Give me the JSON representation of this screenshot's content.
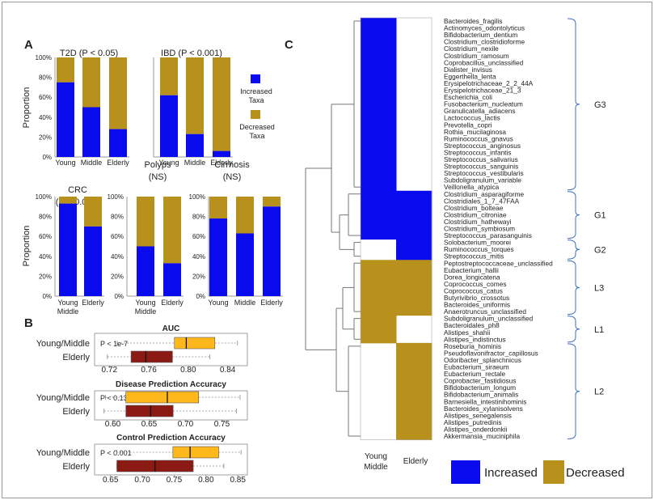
{
  "colors": {
    "increased": "#0a0aef",
    "decreased": "#b8901c",
    "box_young": "#ffb81c",
    "box_elderly": "#8b1a14",
    "dendro": "#777777",
    "bracket": "#3a6fc0"
  },
  "panel_labels": {
    "a": "A",
    "b": "B",
    "c": "C"
  },
  "panel_a": {
    "ylabel": "Proportion",
    "legend": {
      "increased": "Increased\nTaxa",
      "decreased": "Decreased\nTaxa"
    },
    "chart_data": [
      {
        "type": "bar",
        "stacked": true,
        "title": "T2D (P < 0.05)",
        "categories": [
          "Young",
          "Middle",
          "Elderly"
        ],
        "yticks": [
          "0%",
          "20%",
          "40%",
          "60%",
          "80%",
          "100%"
        ],
        "series": [
          {
            "name": "Increased Taxa",
            "values": [
              0.75,
              0.5,
              0.28
            ]
          },
          {
            "name": "Decreased Taxa",
            "values": [
              0.25,
              0.5,
              0.72
            ]
          }
        ]
      },
      {
        "type": "bar",
        "stacked": true,
        "title": "IBD (P < 0.001)",
        "categories": [
          "Young",
          "Middle",
          "Elderly"
        ],
        "yticks": [
          "0%",
          "20%",
          "40%",
          "60%",
          "80%",
          "100%"
        ],
        "series": [
          {
            "name": "Increased Taxa",
            "values": [
              0.62,
              0.23,
              0.06
            ]
          },
          {
            "name": "Decreased Taxa",
            "values": [
              0.38,
              0.77,
              0.94
            ]
          }
        ]
      },
      {
        "type": "bar",
        "stacked": true,
        "title": "CRC\n(P < 0.001)",
        "categories": [
          "Young\nMiddle",
          "Elderly"
        ],
        "yticks": [
          "0%",
          "20%",
          "40%",
          "60%",
          "80%",
          "100%"
        ],
        "series": [
          {
            "name": "Increased Taxa",
            "values": [
              0.93,
              0.7
            ]
          },
          {
            "name": "Decreased Taxa",
            "values": [
              0.07,
              0.3
            ]
          }
        ]
      },
      {
        "type": "bar",
        "stacked": true,
        "title": "Polyps\n(NS)",
        "categories": [
          "Young\nMiddle",
          "Elderly"
        ],
        "yticks": [
          "0%",
          "20%",
          "40%",
          "60%",
          "80%",
          "100%"
        ],
        "series": [
          {
            "name": "Increased Taxa",
            "values": [
              0.5,
              0.33
            ]
          },
          {
            "name": "Decreased Taxa",
            "values": [
              0.5,
              0.67
            ]
          }
        ]
      },
      {
        "type": "bar",
        "stacked": true,
        "title": "Cirrhosis\n(NS)",
        "categories": [
          "Young",
          "Middle",
          "Elderly"
        ],
        "yticks": [
          "0%",
          "20%",
          "40%",
          "60%",
          "80%",
          "100%"
        ],
        "series": [
          {
            "name": "Increased Taxa",
            "values": [
              0.78,
              0.63,
              0.9
            ]
          },
          {
            "name": "Decreased Taxa",
            "values": [
              0.22,
              0.37,
              0.1
            ]
          }
        ]
      }
    ]
  },
  "panel_b": {
    "chart_data": [
      {
        "type": "box",
        "title": "AUC",
        "pvalue": "P < 1e-7",
        "xlim": [
          0.705,
          0.86
        ],
        "xticks": [
          0.72,
          0.76,
          0.8,
          0.84
        ],
        "xticklabels": [
          "0.72",
          "0.76",
          "0.80",
          "0.84"
        ],
        "boxes": [
          {
            "name": "Young/Middle",
            "min": 0.728,
            "q1": 0.786,
            "median": 0.798,
            "q3": 0.827,
            "max": 0.85
          },
          {
            "name": "Elderly",
            "min": 0.718,
            "q1": 0.742,
            "median": 0.757,
            "q3": 0.784,
            "max": 0.822
          }
        ]
      },
      {
        "type": "box",
        "title": "Disease Prediction Accuracy",
        "pvalue": "P < 0.13",
        "xlim": [
          0.575,
          0.785
        ],
        "xticks": [
          0.6,
          0.65,
          0.7,
          0.75
        ],
        "xticklabels": [
          "0.60",
          "0.65",
          "0.70",
          "0.75"
        ],
        "boxes": [
          {
            "name": "Young/Middle",
            "min": 0.59,
            "q1": 0.618,
            "median": 0.675,
            "q3": 0.718,
            "max": 0.775
          },
          {
            "name": "Elderly",
            "min": 0.588,
            "q1": 0.618,
            "median": 0.652,
            "q3": 0.683,
            "max": 0.77
          }
        ]
      },
      {
        "type": "box",
        "title": "Control Prediction Accuracy",
        "pvalue": "P < 0.001",
        "xlim": [
          0.625,
          0.865
        ],
        "xticks": [
          0.65,
          0.7,
          0.75,
          0.8,
          0.85
        ],
        "xticklabels": [
          "0.65",
          "0.70",
          "0.75",
          "0.80",
          "0.85"
        ],
        "boxes": [
          {
            "name": "Young/Middle",
            "min": 0.66,
            "q1": 0.748,
            "median": 0.775,
            "q3": 0.82,
            "max": 0.855
          },
          {
            "name": "Elderly",
            "min": 0.66,
            "q1": 0.66,
            "median": 0.72,
            "q3": 0.78,
            "max": 0.828
          }
        ]
      }
    ]
  },
  "panel_c": {
    "chart_data": {
      "type": "heatmap",
      "columns": [
        "Young\nMiddle",
        "Elderly"
      ],
      "legend": {
        "increased": "Increased",
        "decreased": "Decreased"
      },
      "rows": [
        {
          "taxon": "Bacteroides_fragilis",
          "young_middle": "increased",
          "elderly": "none"
        },
        {
          "taxon": "Actinomyces_odontolyticus",
          "young_middle": "increased",
          "elderly": "none"
        },
        {
          "taxon": "Bifidobacterium_dentium",
          "young_middle": "increased",
          "elderly": "none"
        },
        {
          "taxon": "Clostridium_clostridioforme",
          "young_middle": "increased",
          "elderly": "none"
        },
        {
          "taxon": "Clostridium_nexile",
          "young_middle": "increased",
          "elderly": "none"
        },
        {
          "taxon": "Clostridium_ramosum",
          "young_middle": "increased",
          "elderly": "none"
        },
        {
          "taxon": "Coprobacillus_unclassified",
          "young_middle": "increased",
          "elderly": "none"
        },
        {
          "taxon": "Dialister_invisus",
          "young_middle": "increased",
          "elderly": "none"
        },
        {
          "taxon": "Eggerthella_lenta",
          "young_middle": "increased",
          "elderly": "none"
        },
        {
          "taxon": "Erysipelotrichaceae_2_2_44A",
          "young_middle": "increased",
          "elderly": "none"
        },
        {
          "taxon": "Erysipelotrichaceae_21_3",
          "young_middle": "increased",
          "elderly": "none"
        },
        {
          "taxon": "Escherichia_coli",
          "young_middle": "increased",
          "elderly": "none"
        },
        {
          "taxon": "Fusobacterium_nucleatum",
          "young_middle": "increased",
          "elderly": "none"
        },
        {
          "taxon": "Granulicatella_adiacens",
          "young_middle": "increased",
          "elderly": "none"
        },
        {
          "taxon": "Lactococcus_lactis",
          "young_middle": "increased",
          "elderly": "none"
        },
        {
          "taxon": "Prevotella_copri",
          "young_middle": "increased",
          "elderly": "none"
        },
        {
          "taxon": "Rothia_mucilaginosa",
          "young_middle": "increased",
          "elderly": "none"
        },
        {
          "taxon": "Ruminococcus_gnavus",
          "young_middle": "increased",
          "elderly": "none"
        },
        {
          "taxon": "Streptococcus_anginosus",
          "young_middle": "increased",
          "elderly": "none"
        },
        {
          "taxon": "Streptococcus_infantis",
          "young_middle": "increased",
          "elderly": "none"
        },
        {
          "taxon": "Streptococcus_salivarius",
          "young_middle": "increased",
          "elderly": "none"
        },
        {
          "taxon": "Streptococcus_sanguinis",
          "young_middle": "increased",
          "elderly": "none"
        },
        {
          "taxon": "Streptococcus_vestibularis",
          "young_middle": "increased",
          "elderly": "none"
        },
        {
          "taxon": "Subdoligranulum_variable",
          "young_middle": "increased",
          "elderly": "none"
        },
        {
          "taxon": "Veillonella_atypica",
          "young_middle": "increased",
          "elderly": "none"
        },
        {
          "taxon": "Clostridium_asparagiforme",
          "young_middle": "increased",
          "elderly": "increased"
        },
        {
          "taxon": "Clostridiales_1_7_47FAA",
          "young_middle": "increased",
          "elderly": "increased"
        },
        {
          "taxon": "Clostridium_bolteae",
          "young_middle": "increased",
          "elderly": "increased"
        },
        {
          "taxon": "Clostridium_citroniae",
          "young_middle": "increased",
          "elderly": "increased"
        },
        {
          "taxon": "Clostridium_hathewayi",
          "young_middle": "increased",
          "elderly": "increased"
        },
        {
          "taxon": "Clostridium_symbiosum",
          "young_middle": "increased",
          "elderly": "increased"
        },
        {
          "taxon": "Streptococcus_parasanguinis",
          "young_middle": "increased",
          "elderly": "increased"
        },
        {
          "taxon": "Solobacterium_moorei",
          "young_middle": "none",
          "elderly": "increased"
        },
        {
          "taxon": "Ruminococcus_torques",
          "young_middle": "none",
          "elderly": "increased"
        },
        {
          "taxon": "Streptococcus_mitis",
          "young_middle": "none",
          "elderly": "increased"
        },
        {
          "taxon": "Peptostreptococcaceae_unclassified",
          "young_middle": "decreased",
          "elderly": "decreased"
        },
        {
          "taxon": "Eubacterium_hallii",
          "young_middle": "decreased",
          "elderly": "decreased"
        },
        {
          "taxon": "Dorea_longicatena",
          "young_middle": "decreased",
          "elderly": "decreased"
        },
        {
          "taxon": "Coprococcus_comes",
          "young_middle": "decreased",
          "elderly": "decreased"
        },
        {
          "taxon": "Coprococcus_catus",
          "young_middle": "decreased",
          "elderly": "decreased"
        },
        {
          "taxon": "Butyrivibrio_crossotus",
          "young_middle": "decreased",
          "elderly": "decreased"
        },
        {
          "taxon": "Bacteroides_uniformis",
          "young_middle": "decreased",
          "elderly": "decreased"
        },
        {
          "taxon": "Anaerotruncus_unclassified",
          "young_middle": "decreased",
          "elderly": "decreased"
        },
        {
          "taxon": "Subdoligranulum_unclassified",
          "young_middle": "decreased",
          "elderly": "none"
        },
        {
          "taxon": "Bacteroidales_ph8",
          "young_middle": "decreased",
          "elderly": "none"
        },
        {
          "taxon": "Alistipes_shahii",
          "young_middle": "decreased",
          "elderly": "none"
        },
        {
          "taxon": "Alistipes_indistinctus",
          "young_middle": "decreased",
          "elderly": "none"
        },
        {
          "taxon": "Roseburia_hominis",
          "young_middle": "none",
          "elderly": "decreased"
        },
        {
          "taxon": "Pseudoflavonifractor_capillosus",
          "young_middle": "none",
          "elderly": "decreased"
        },
        {
          "taxon": "Odoribacter_splanchnicus",
          "young_middle": "none",
          "elderly": "decreased"
        },
        {
          "taxon": "Eubacterium_siraeum",
          "young_middle": "none",
          "elderly": "decreased"
        },
        {
          "taxon": "Eubacterium_rectale",
          "young_middle": "none",
          "elderly": "decreased"
        },
        {
          "taxon": "Coprobacter_fastidiosus",
          "young_middle": "none",
          "elderly": "decreased"
        },
        {
          "taxon": "Bifidobacterium_longum",
          "young_middle": "none",
          "elderly": "decreased"
        },
        {
          "taxon": "Bifidobacterium_animalis",
          "young_middle": "none",
          "elderly": "decreased"
        },
        {
          "taxon": "Barnesiella_intestinihominis",
          "young_middle": "none",
          "elderly": "decreased"
        },
        {
          "taxon": "Bacteroides_xylanisolvens",
          "young_middle": "none",
          "elderly": "decreased"
        },
        {
          "taxon": "Alistipes_senegalensis",
          "young_middle": "none",
          "elderly": "decreased"
        },
        {
          "taxon": "Alistipes_putredinis",
          "young_middle": "none",
          "elderly": "decreased"
        },
        {
          "taxon": "Alistipes_onderdonkii",
          "young_middle": "none",
          "elderly": "decreased"
        },
        {
          "taxon": "Akkermansia_muciniphila",
          "young_middle": "none",
          "elderly": "decreased"
        }
      ],
      "groups": [
        {
          "label": "G3",
          "first": 0,
          "last": 24
        },
        {
          "label": "G1",
          "first": 25,
          "last": 31
        },
        {
          "label": "G2",
          "first": 32,
          "last": 34
        },
        {
          "label": "L3",
          "first": 35,
          "last": 42
        },
        {
          "label": "L1",
          "first": 43,
          "last": 46
        },
        {
          "label": "L2",
          "first": 47,
          "last": 60
        }
      ]
    }
  }
}
